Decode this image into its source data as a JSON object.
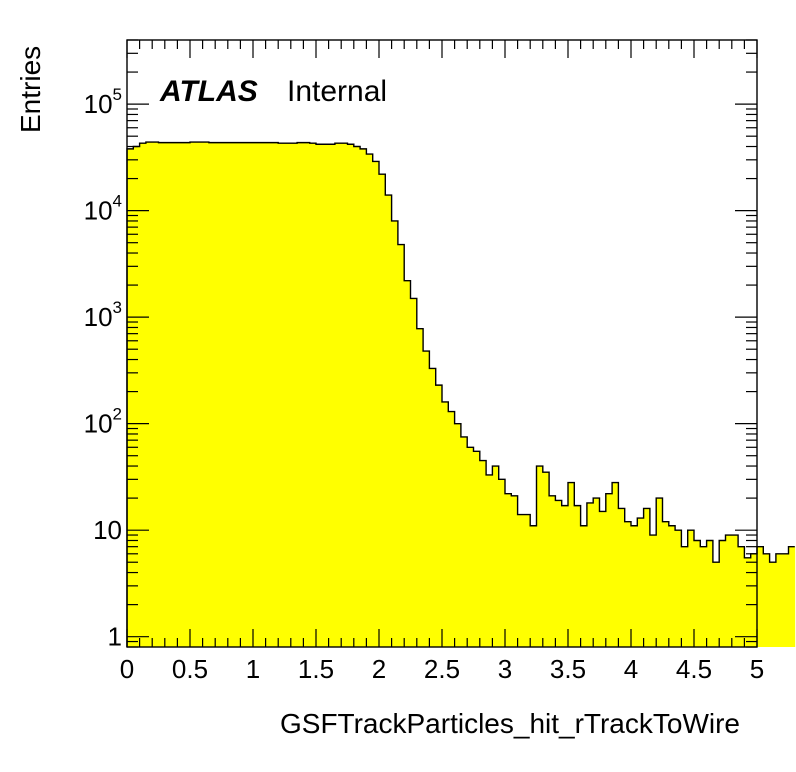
{
  "chart_data": {
    "type": "histogram",
    "label": {
      "experiment": "ATLAS",
      "status": "Internal"
    },
    "xlabel": "GSFTrackParticles_hit_rTrackToWire",
    "ylabel": "Entries",
    "xlim": [
      0,
      5
    ],
    "ylim": [
      0.8,
      400000
    ],
    "yscale": "log",
    "x_ticks": [
      "0",
      "0.5",
      "1",
      "1.5",
      "2",
      "2.5",
      "3",
      "3.5",
      "4",
      "4.5",
      "5"
    ],
    "y_ticks": [
      {
        "base": "1",
        "exp": ""
      },
      {
        "base": "10",
        "exp": ""
      },
      {
        "base": "10",
        "exp": "2"
      },
      {
        "base": "10",
        "exp": "3"
      },
      {
        "base": "10",
        "exp": "4"
      },
      {
        "base": "10",
        "exp": "5"
      }
    ],
    "fill_color": "#ffff00",
    "line_color": "#000000",
    "bin_width": 0.05,
    "bin_edges_start": 0,
    "values": [
      38000,
      40000,
      43000,
      44000,
      44000,
      43500,
      43500,
      43500,
      43500,
      43500,
      44000,
      44000,
      44000,
      43500,
      43500,
      43500,
      43500,
      43500,
      43500,
      43500,
      43500,
      43500,
      43500,
      43500,
      43000,
      43000,
      43000,
      43500,
      43500,
      43000,
      42000,
      42000,
      42000,
      43000,
      43000,
      42000,
      40000,
      38000,
      34000,
      29000,
      22000,
      14000,
      8000,
      4800,
      2200,
      1500,
      780,
      480,
      330,
      230,
      160,
      130,
      100,
      75,
      60,
      55,
      45,
      33,
      40,
      30,
      22,
      21,
      14,
      14,
      11,
      40,
      35,
      21,
      19,
      17,
      28,
      17,
      11,
      18,
      20,
      15,
      22,
      28,
      16,
      12,
      11,
      13,
      16,
      9,
      20,
      12,
      11,
      10,
      7,
      10,
      8,
      7,
      8,
      5,
      8,
      9,
      9,
      7,
      5.5,
      6,
      7,
      6,
      5,
      6,
      6,
      7
    ]
  }
}
